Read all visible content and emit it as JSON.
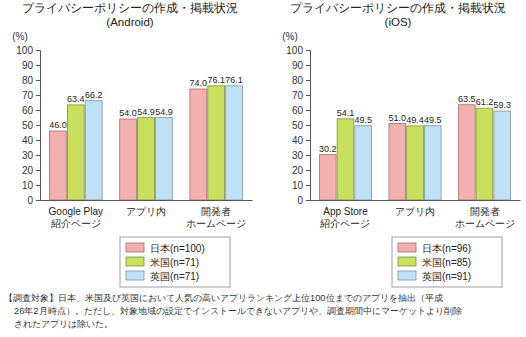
{
  "chart_data": [
    {
      "type": "bar",
      "title": "プライバシーポリシーの作成・掲載状況",
      "subtitle": "(Android)",
      "y_label": "(%)",
      "categories": [
        "Google Play\n紹介ページ",
        "アプリ内",
        "開発者\nホームページ"
      ],
      "series": [
        {
          "name": "日本(n=100)",
          "color": "#f4b0b0",
          "values": [
            46.0,
            54.0,
            74.0
          ],
          "value_labels": [
            "46.0",
            "54.0",
            "74.0"
          ]
        },
        {
          "name": "米国(n=71)",
          "color": "#c9df5e",
          "values": [
            63.4,
            54.9,
            76.1
          ],
          "value_labels": [
            "63.4",
            "54.9",
            "76.1"
          ]
        },
        {
          "name": "英国(n=71)",
          "color": "#bfe1f6",
          "values": [
            66.2,
            54.9,
            76.1
          ],
          "value_labels": [
            "66.2",
            "54.9",
            "76.1"
          ]
        }
      ],
      "ylim": [
        0,
        100
      ],
      "yticks": [
        0,
        10,
        20,
        30,
        40,
        50,
        60,
        70,
        80,
        90,
        100
      ],
      "grid": false,
      "legend": "bottom",
      "data_labels": true
    },
    {
      "type": "bar",
      "title": "プライバシーポリシーの作成・掲載状況",
      "subtitle": "(iOS)",
      "y_label": "(%)",
      "categories": [
        "App Store\n紹介ページ",
        "アプリ内",
        "開発者\nホームページ"
      ],
      "series": [
        {
          "name": "日本(n=96)",
          "color": "#f4b0b0",
          "values": [
            30.2,
            51.0,
            63.5
          ],
          "value_labels": [
            "30.2",
            "51.0",
            "63.5"
          ]
        },
        {
          "name": "米国(n=85)",
          "color": "#c9df5e",
          "values": [
            54.1,
            49.4,
            61.2
          ],
          "value_labels": [
            "54.1",
            "49.4",
            "61.2"
          ]
        },
        {
          "name": "英国(n=91)",
          "color": "#bfe1f6",
          "values": [
            49.5,
            49.5,
            59.3
          ],
          "value_labels": [
            "49.5",
            "49.5",
            "59.3"
          ]
        }
      ],
      "ylim": [
        0,
        100
      ],
      "yticks": [
        0,
        10,
        20,
        30,
        40,
        50,
        60,
        70,
        80,
        90,
        100
      ],
      "grid": false,
      "legend": "bottom",
      "data_labels": true
    }
  ],
  "note": [
    "【調査対象】日本、米国及び英国において人気の高いアプリランキング上位100位までのアプリを抽出（平成",
    "26年2月時点）。ただし、対象地域の設定でインストールできないアプリや、調査期間中にマーケットより削除",
    "されたアプリは除いた。"
  ]
}
